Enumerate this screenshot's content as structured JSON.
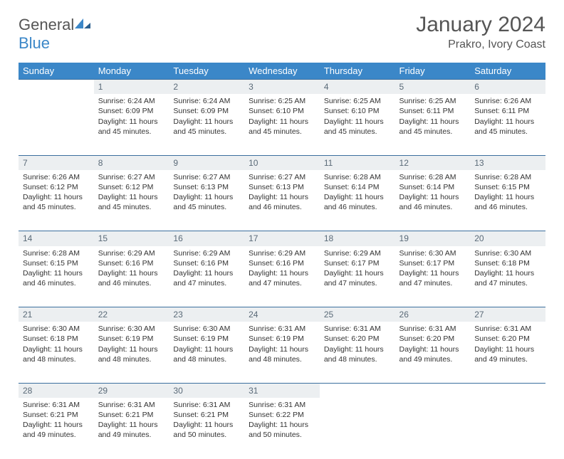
{
  "logo": {
    "text_general": "General",
    "text_blue": "Blue"
  },
  "title": "January 2024",
  "location": "Prakro, Ivory Coast",
  "colors": {
    "header_bg": "#3b87c8",
    "header_text": "#ffffff",
    "daynum_bg": "#eceff1",
    "daynum_border": "#3b6f9e",
    "daynum_text": "#5a6a78",
    "body_text": "#333333",
    "title_text": "#555555",
    "page_bg": "#ffffff"
  },
  "fonts": {
    "title_size": 30,
    "location_size": 16,
    "dayhead_size": 13,
    "daynum_size": 12,
    "cell_size": 10.5
  },
  "day_names": [
    "Sunday",
    "Monday",
    "Tuesday",
    "Wednesday",
    "Thursday",
    "Friday",
    "Saturday"
  ],
  "weeks": [
    [
      null,
      {
        "n": "1",
        "sunrise": "Sunrise: 6:24 AM",
        "sunset": "Sunset: 6:09 PM",
        "day1": "Daylight: 11 hours",
        "day2": "and 45 minutes."
      },
      {
        "n": "2",
        "sunrise": "Sunrise: 6:24 AM",
        "sunset": "Sunset: 6:09 PM",
        "day1": "Daylight: 11 hours",
        "day2": "and 45 minutes."
      },
      {
        "n": "3",
        "sunrise": "Sunrise: 6:25 AM",
        "sunset": "Sunset: 6:10 PM",
        "day1": "Daylight: 11 hours",
        "day2": "and 45 minutes."
      },
      {
        "n": "4",
        "sunrise": "Sunrise: 6:25 AM",
        "sunset": "Sunset: 6:10 PM",
        "day1": "Daylight: 11 hours",
        "day2": "and 45 minutes."
      },
      {
        "n": "5",
        "sunrise": "Sunrise: 6:25 AM",
        "sunset": "Sunset: 6:11 PM",
        "day1": "Daylight: 11 hours",
        "day2": "and 45 minutes."
      },
      {
        "n": "6",
        "sunrise": "Sunrise: 6:26 AM",
        "sunset": "Sunset: 6:11 PM",
        "day1": "Daylight: 11 hours",
        "day2": "and 45 minutes."
      }
    ],
    [
      {
        "n": "7",
        "sunrise": "Sunrise: 6:26 AM",
        "sunset": "Sunset: 6:12 PM",
        "day1": "Daylight: 11 hours",
        "day2": "and 45 minutes."
      },
      {
        "n": "8",
        "sunrise": "Sunrise: 6:27 AM",
        "sunset": "Sunset: 6:12 PM",
        "day1": "Daylight: 11 hours",
        "day2": "and 45 minutes."
      },
      {
        "n": "9",
        "sunrise": "Sunrise: 6:27 AM",
        "sunset": "Sunset: 6:13 PM",
        "day1": "Daylight: 11 hours",
        "day2": "and 45 minutes."
      },
      {
        "n": "10",
        "sunrise": "Sunrise: 6:27 AM",
        "sunset": "Sunset: 6:13 PM",
        "day1": "Daylight: 11 hours",
        "day2": "and 46 minutes."
      },
      {
        "n": "11",
        "sunrise": "Sunrise: 6:28 AM",
        "sunset": "Sunset: 6:14 PM",
        "day1": "Daylight: 11 hours",
        "day2": "and 46 minutes."
      },
      {
        "n": "12",
        "sunrise": "Sunrise: 6:28 AM",
        "sunset": "Sunset: 6:14 PM",
        "day1": "Daylight: 11 hours",
        "day2": "and 46 minutes."
      },
      {
        "n": "13",
        "sunrise": "Sunrise: 6:28 AM",
        "sunset": "Sunset: 6:15 PM",
        "day1": "Daylight: 11 hours",
        "day2": "and 46 minutes."
      }
    ],
    [
      {
        "n": "14",
        "sunrise": "Sunrise: 6:28 AM",
        "sunset": "Sunset: 6:15 PM",
        "day1": "Daylight: 11 hours",
        "day2": "and 46 minutes."
      },
      {
        "n": "15",
        "sunrise": "Sunrise: 6:29 AM",
        "sunset": "Sunset: 6:16 PM",
        "day1": "Daylight: 11 hours",
        "day2": "and 46 minutes."
      },
      {
        "n": "16",
        "sunrise": "Sunrise: 6:29 AM",
        "sunset": "Sunset: 6:16 PM",
        "day1": "Daylight: 11 hours",
        "day2": "and 47 minutes."
      },
      {
        "n": "17",
        "sunrise": "Sunrise: 6:29 AM",
        "sunset": "Sunset: 6:16 PM",
        "day1": "Daylight: 11 hours",
        "day2": "and 47 minutes."
      },
      {
        "n": "18",
        "sunrise": "Sunrise: 6:29 AM",
        "sunset": "Sunset: 6:17 PM",
        "day1": "Daylight: 11 hours",
        "day2": "and 47 minutes."
      },
      {
        "n": "19",
        "sunrise": "Sunrise: 6:30 AM",
        "sunset": "Sunset: 6:17 PM",
        "day1": "Daylight: 11 hours",
        "day2": "and 47 minutes."
      },
      {
        "n": "20",
        "sunrise": "Sunrise: 6:30 AM",
        "sunset": "Sunset: 6:18 PM",
        "day1": "Daylight: 11 hours",
        "day2": "and 47 minutes."
      }
    ],
    [
      {
        "n": "21",
        "sunrise": "Sunrise: 6:30 AM",
        "sunset": "Sunset: 6:18 PM",
        "day1": "Daylight: 11 hours",
        "day2": "and 48 minutes."
      },
      {
        "n": "22",
        "sunrise": "Sunrise: 6:30 AM",
        "sunset": "Sunset: 6:19 PM",
        "day1": "Daylight: 11 hours",
        "day2": "and 48 minutes."
      },
      {
        "n": "23",
        "sunrise": "Sunrise: 6:30 AM",
        "sunset": "Sunset: 6:19 PM",
        "day1": "Daylight: 11 hours",
        "day2": "and 48 minutes."
      },
      {
        "n": "24",
        "sunrise": "Sunrise: 6:31 AM",
        "sunset": "Sunset: 6:19 PM",
        "day1": "Daylight: 11 hours",
        "day2": "and 48 minutes."
      },
      {
        "n": "25",
        "sunrise": "Sunrise: 6:31 AM",
        "sunset": "Sunset: 6:20 PM",
        "day1": "Daylight: 11 hours",
        "day2": "and 48 minutes."
      },
      {
        "n": "26",
        "sunrise": "Sunrise: 6:31 AM",
        "sunset": "Sunset: 6:20 PM",
        "day1": "Daylight: 11 hours",
        "day2": "and 49 minutes."
      },
      {
        "n": "27",
        "sunrise": "Sunrise: 6:31 AM",
        "sunset": "Sunset: 6:20 PM",
        "day1": "Daylight: 11 hours",
        "day2": "and 49 minutes."
      }
    ],
    [
      {
        "n": "28",
        "sunrise": "Sunrise: 6:31 AM",
        "sunset": "Sunset: 6:21 PM",
        "day1": "Daylight: 11 hours",
        "day2": "and 49 minutes."
      },
      {
        "n": "29",
        "sunrise": "Sunrise: 6:31 AM",
        "sunset": "Sunset: 6:21 PM",
        "day1": "Daylight: 11 hours",
        "day2": "and 49 minutes."
      },
      {
        "n": "30",
        "sunrise": "Sunrise: 6:31 AM",
        "sunset": "Sunset: 6:21 PM",
        "day1": "Daylight: 11 hours",
        "day2": "and 50 minutes."
      },
      {
        "n": "31",
        "sunrise": "Sunrise: 6:31 AM",
        "sunset": "Sunset: 6:22 PM",
        "day1": "Daylight: 11 hours",
        "day2": "and 50 minutes."
      },
      null,
      null,
      null
    ]
  ]
}
